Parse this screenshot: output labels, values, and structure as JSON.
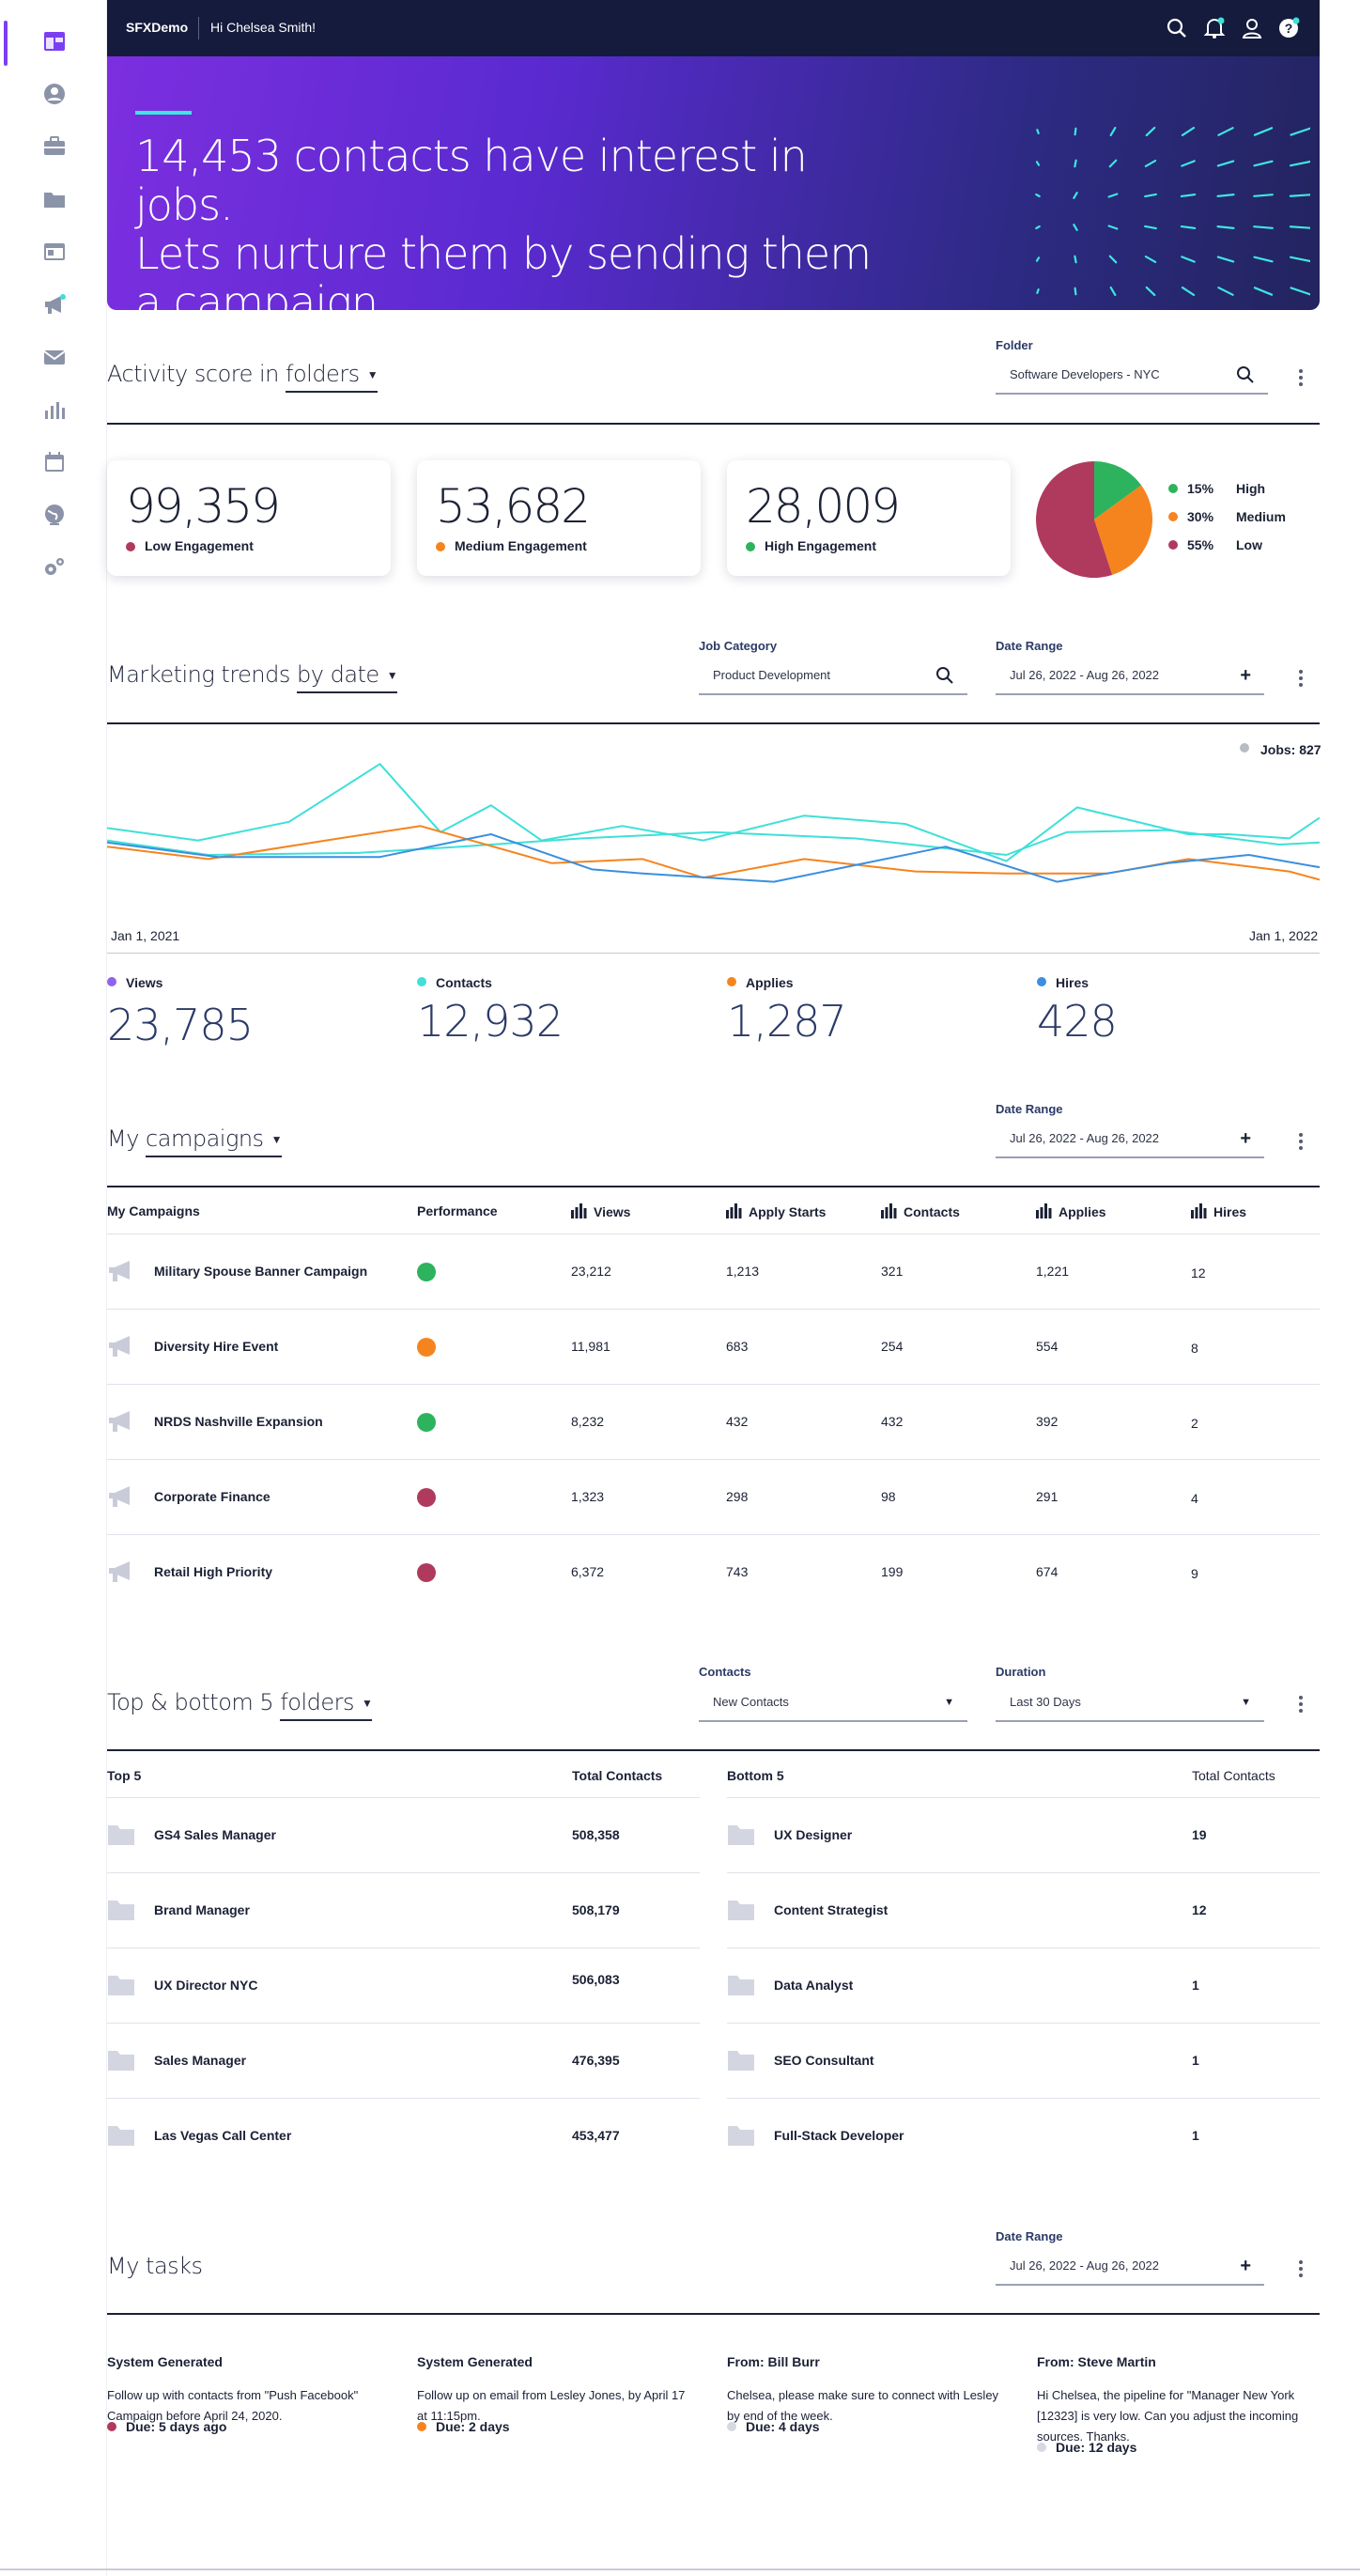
{
  "app": {
    "brand": "SFXDemo",
    "greeting": "Hi Chelsea Smith!"
  },
  "sidebar": {
    "items": [
      "dashboard-icon",
      "person-icon",
      "briefcase-icon",
      "folder-icon",
      "browser-window-icon",
      "megaphone-icon",
      "envelope-icon",
      "bar-chart-icon",
      "calendar-icon",
      "globe-icon",
      "settings-icon"
    ]
  },
  "topbar_icons": [
    "search-icon",
    "bell-icon",
    "user-icon",
    "help-icon"
  ],
  "hero": {
    "line1": "14,453 contacts have interest in jobs.",
    "line2": "Lets nurture them by sending them",
    "line3": "a campaign"
  },
  "activity": {
    "title_prefix": "Activity score in ",
    "title_dropdown": "folders",
    "folder_label": "Folder",
    "folder_value": "Software Developers - NYC",
    "cards": [
      {
        "value": "99,359",
        "label": "Low Engagement",
        "color": "#b03a5e"
      },
      {
        "value": "53,682",
        "label": "Medium Engagement",
        "color": "#f5841f"
      },
      {
        "value": "28,009",
        "label": "High Engagement",
        "color": "#2db35d"
      }
    ],
    "pie": [
      {
        "pct": "15%",
        "label": "High",
        "value": 15,
        "color": "#2db35d"
      },
      {
        "pct": "30%",
        "label": "Medium",
        "value": 30,
        "color": "#f5841f"
      },
      {
        "pct": "55%",
        "label": "Low",
        "value": 55,
        "color": "#b03a5e"
      }
    ]
  },
  "trends": {
    "title_prefix": "Marketing trends ",
    "title_dropdown": "by date",
    "job_category_label": "Job Category",
    "job_category_value": "Product Development",
    "date_range_label": "Date Range",
    "date_range_value": "Jul 26, 2022 - Aug 26, 2022",
    "jobs_badge": "Jobs: 827",
    "x_start": "Jan 1, 2021",
    "x_end": "Jan 1, 2022",
    "metrics": [
      {
        "label": "Views",
        "value": "23,785",
        "color": "#8f63f0"
      },
      {
        "label": "Contacts",
        "value": "12,932",
        "color": "#3ee0d8"
      },
      {
        "label": "Applies",
        "value": "1,287",
        "color": "#f5841f"
      },
      {
        "label": "Hires",
        "value": "428",
        "color": "#3a8fe0"
      }
    ]
  },
  "chart_data": {
    "type": "line",
    "x": [
      0,
      1,
      2,
      3,
      4,
      5,
      6,
      7,
      8,
      9,
      10,
      11,
      12
    ],
    "ylim": [
      0,
      10
    ],
    "series": [
      {
        "name": "Contacts",
        "color": "#3ee0d8",
        "points": [
          [
            0,
            6.3
          ],
          [
            0.9,
            5.7
          ],
          [
            1.8,
            6.6
          ],
          [
            2.7,
            9.4
          ],
          [
            3.3,
            6.1
          ],
          [
            3.8,
            7.4
          ],
          [
            4.3,
            5.7
          ],
          [
            5.1,
            6.4
          ],
          [
            5.9,
            5.7
          ],
          [
            6.9,
            6.9
          ],
          [
            7.9,
            6.5
          ],
          [
            8.9,
            4.7
          ],
          [
            9.6,
            7.3
          ],
          [
            10.7,
            6.0
          ],
          [
            11.1,
            6.0
          ],
          [
            11.7,
            5.8
          ],
          [
            12,
            6.8
          ]
        ]
      },
      {
        "name": "Contacts (secondary)",
        "color": "#3ee0d8",
        "points": [
          [
            0,
            5.7
          ],
          [
            1,
            5.0
          ],
          [
            2.5,
            5.1
          ],
          [
            3.5,
            5.4
          ],
          [
            4.7,
            5.8
          ],
          [
            6,
            6.1
          ],
          [
            7.4,
            5.8
          ],
          [
            8.9,
            5.0
          ],
          [
            9.5,
            6.1
          ],
          [
            10.5,
            6.2
          ],
          [
            11.6,
            5.5
          ],
          [
            12,
            5.6
          ]
        ]
      },
      {
        "name": "Applies",
        "color": "#f5841f",
        "points": [
          [
            0,
            5.4
          ],
          [
            1,
            4.8
          ],
          [
            2.3,
            5.8
          ],
          [
            3.1,
            6.4
          ],
          [
            4.4,
            4.6
          ],
          [
            5.3,
            4.8
          ],
          [
            5.9,
            3.9
          ],
          [
            6.9,
            4.8
          ],
          [
            8,
            4.2
          ],
          [
            8.9,
            4.1
          ],
          [
            9.9,
            4.1
          ],
          [
            10.7,
            4.8
          ],
          [
            11.7,
            4.2
          ],
          [
            12,
            3.8
          ]
        ]
      },
      {
        "name": "Hires",
        "color": "#3a8fe0",
        "points": [
          [
            0,
            5.6
          ],
          [
            1.1,
            4.9
          ],
          [
            2.7,
            4.9
          ],
          [
            3.8,
            6.0
          ],
          [
            4.8,
            4.3
          ],
          [
            5.3,
            4.1
          ],
          [
            6.6,
            3.7
          ],
          [
            8.3,
            5.4
          ],
          [
            9.4,
            3.7
          ],
          [
            10.5,
            4.6
          ],
          [
            11.3,
            5.0
          ],
          [
            12,
            4.4
          ]
        ]
      }
    ],
    "xlabel": "",
    "ylabel": ""
  },
  "campaigns": {
    "title_prefix": "My ",
    "title_dropdown": "campaigns",
    "date_range_label": "Date Range",
    "date_range_value": "Jul 26, 2022 - Aug 26, 2022",
    "headers": [
      "My Campaigns",
      "Performance",
      "Views",
      "Apply Starts",
      "Contacts",
      "Applies",
      "Hires"
    ],
    "rows": [
      {
        "name": "Military Spouse Banner Campaign",
        "perf": "#2db35d",
        "views": "23,212",
        "starts": "1,213",
        "contacts": "321",
        "applies": "1,221",
        "hires": "12"
      },
      {
        "name": "Diversity Hire Event",
        "perf": "#f5841f",
        "views": "11,981",
        "starts": "683",
        "contacts": "254",
        "applies": "554",
        "hires": "8"
      },
      {
        "name": "NRDS Nashville Expansion",
        "perf": "#2db35d",
        "views": "8,232",
        "starts": "432",
        "contacts": "432",
        "applies": "392",
        "hires": "2"
      },
      {
        "name": "Corporate Finance",
        "perf": "#b03a5e",
        "views": "1,323",
        "starts": "298",
        "contacts": "98",
        "applies": "291",
        "hires": "4"
      },
      {
        "name": "Retail High Priority",
        "perf": "#b03a5e",
        "views": "6,372",
        "starts": "743",
        "contacts": "199",
        "applies": "674",
        "hires": "9"
      }
    ]
  },
  "folders": {
    "title_prefix": "Top & bottom 5 ",
    "title_dropdown": "folders",
    "contacts_label": "Contacts",
    "contacts_value": "New Contacts",
    "duration_label": "Duration",
    "duration_value": "Last 30 Days",
    "top_header": "Top 5",
    "bottom_header": "Bottom 5",
    "total_header": "Total Contacts",
    "top": [
      {
        "name": "GS4 Sales Manager",
        "total": "508,358"
      },
      {
        "name": "Brand Manager",
        "total": "508,179"
      },
      {
        "name": "UX Director NYC",
        "total": "506,083"
      },
      {
        "name": "Sales Manager",
        "total": "476,395"
      },
      {
        "name": "Las Vegas Call Center",
        "total": "453,477"
      }
    ],
    "bottom": [
      {
        "name": "UX Designer",
        "total": "19"
      },
      {
        "name": "Content Strategist",
        "total": "12"
      },
      {
        "name": "Data Analyst",
        "total": "1"
      },
      {
        "name": "SEO Consultant",
        "total": "1"
      },
      {
        "name": "Full-Stack Developer",
        "total": "1"
      }
    ]
  },
  "tasks": {
    "title": "My tasks",
    "date_range_label": "Date Range",
    "date_range_value": "Jul 26, 2022 - Aug 26, 2022",
    "items": [
      {
        "from": "System Generated",
        "body": "Follow up with contacts from \"Push Facebook\" Campaign before April 24, 2020.",
        "due": "Due: 5 days ago",
        "color": "#b03a5e"
      },
      {
        "from": "System Generated",
        "body": "Follow up on email  from Lesley Jones, by April 17 at 11:15pm.",
        "due": "Due: 2 days",
        "color": "#f5841f"
      },
      {
        "from": "From: Bill Burr",
        "body": "Chelsea, please make sure to connect with Lesley by end of the week.",
        "due": "Due: 4 days",
        "color": "#d6d9e2"
      },
      {
        "from": "From: Steve Martin",
        "body": "Hi Chelsea, the pipeline for \"Manager New York [12323] is very low. Can you adjust  the incoming sources. Thanks.",
        "due": "Due: 12 days",
        "color": "#d6d9e2"
      }
    ]
  }
}
